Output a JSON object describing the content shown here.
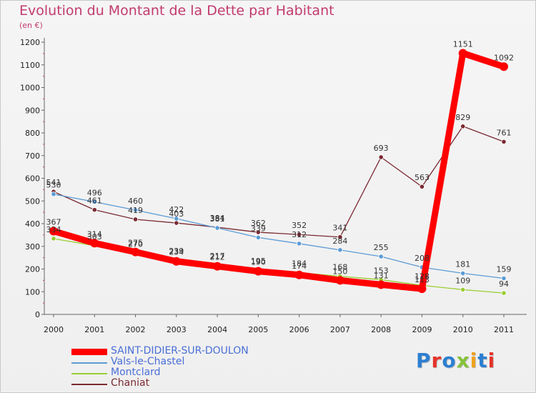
{
  "page": {
    "title": "Evolution du Montant de la Dette par Habitant",
    "unit": "(en €)"
  },
  "logo": {
    "text": "Proxiti",
    "colors": [
      "#2c7fd1",
      "#e5342a",
      "#2c7fd1",
      "#86c23a",
      "#f0a21c",
      "#2c7fd1",
      "#e5342a"
    ]
  },
  "chart_data": {
    "type": "line",
    "title": "Evolution du Montant de la Dette par Habitant",
    "subtitle": "(en €)",
    "xlabel": "",
    "ylabel": "",
    "x": [
      "2000",
      "2001",
      "2002",
      "2003",
      "2004",
      "2005",
      "2006",
      "2007",
      "2008",
      "2009",
      "2010",
      "2011"
    ],
    "ylim": [
      0,
      1200
    ],
    "yticks": [
      "0",
      "100",
      "200",
      "300",
      "400",
      "500",
      "600",
      "700",
      "800",
      "900",
      "1000",
      "1100",
      "1200"
    ],
    "grid": false,
    "legend_position": "bottom-left",
    "series": [
      {
        "name": "SAINT-DIDIER-SUR-DOULON",
        "color": "#ff0000",
        "values": [
          367,
          314,
          275,
          234,
          212,
          190,
          174,
          150,
          131,
          113,
          1151,
          1092
        ],
        "labels": [
          "367",
          "314",
          "275",
          "234",
          "212",
          "190",
          "174",
          "150",
          "131",
          "113",
          "1151",
          "1092"
        ]
      },
      {
        "name": "Vals-le-Chastel",
        "color": "#5b9bd5",
        "values": [
          530,
          496,
          460,
          422,
          381,
          339,
          312,
          284,
          255,
          208,
          181,
          159
        ],
        "labels": [
          "530",
          "496",
          "460",
          "422",
          "381",
          "339",
          "312",
          "284",
          "255",
          "208",
          "181",
          "159"
        ]
      },
      {
        "name": "Montclard",
        "color": "#9acd32",
        "values": [
          334,
          303,
          270,
          239,
          217,
          195,
          184,
          168,
          153,
          128,
          109,
          94
        ],
        "labels": [
          "334",
          "303",
          "270",
          "239",
          "217",
          "195",
          "184",
          "168",
          "153",
          "128",
          "109",
          "94"
        ]
      },
      {
        "name": "Chaniat",
        "color": "#7a2a32",
        "values": [
          541,
          461,
          419,
          403,
          384,
          362,
          352,
          341,
          693,
          563,
          829,
          761
        ],
        "labels": [
          "541",
          "461",
          "419",
          "403",
          "384",
          "362",
          "352",
          "341",
          "693",
          "563",
          "829",
          "761"
        ]
      }
    ]
  }
}
